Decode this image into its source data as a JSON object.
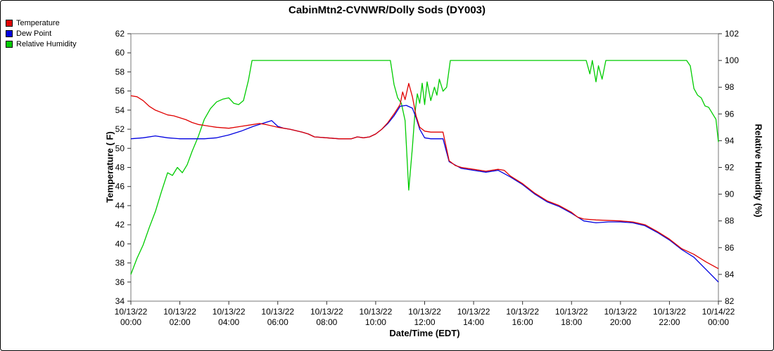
{
  "title": "CabinMtn2-CVNWR/Dolly Sods (DY003)",
  "legend": {
    "items": [
      {
        "label": "Temperature",
        "color": "#e00000"
      },
      {
        "label": "Dew Point",
        "color": "#0000e0"
      },
      {
        "label": "Relative Humidity",
        "color": "#00cc00"
      }
    ]
  },
  "chart_data": {
    "type": "line",
    "title": "CabinMtn2-CVNWR/Dolly Sods (DY003)",
    "xlabel": "Date/Time (EDT)",
    "ylabel_left": "Temperature ( F)",
    "ylabel_right": "Relative Humidity (%)",
    "x_unit": "hours since 10/13/22 00:00",
    "xlim": [
      0,
      24
    ],
    "ylim_left": [
      34,
      62
    ],
    "ylim_right": [
      82,
      102
    ],
    "yticks_left": [
      34,
      36,
      38,
      40,
      42,
      44,
      46,
      48,
      50,
      52,
      54,
      56,
      58,
      60,
      62
    ],
    "yticks_right": [
      82,
      84,
      86,
      88,
      90,
      92,
      94,
      96,
      98,
      100,
      102
    ],
    "xticks": [
      {
        "pos": 0,
        "date": "10/13/22",
        "time": "00:00"
      },
      {
        "pos": 2,
        "date": "10/13/22",
        "time": "02:00"
      },
      {
        "pos": 4,
        "date": "10/13/22",
        "time": "04:00"
      },
      {
        "pos": 6,
        "date": "10/13/22",
        "time": "06:00"
      },
      {
        "pos": 8,
        "date": "10/13/22",
        "time": "08:00"
      },
      {
        "pos": 10,
        "date": "10/13/22",
        "time": "10:00"
      },
      {
        "pos": 12,
        "date": "10/13/22",
        "time": "12:00"
      },
      {
        "pos": 14,
        "date": "10/13/22",
        "time": "14:00"
      },
      {
        "pos": 16,
        "date": "10/13/22",
        "time": "16:00"
      },
      {
        "pos": 18,
        "date": "10/13/22",
        "time": "18:00"
      },
      {
        "pos": 20,
        "date": "10/13/22",
        "time": "20:00"
      },
      {
        "pos": 22,
        "date": "10/13/22",
        "time": "22:00"
      },
      {
        "pos": 24,
        "date": "10/14/22",
        "time": "00:00"
      }
    ],
    "grid": false,
    "legend_position": "top-left",
    "series": [
      {
        "name": "Relative Humidity",
        "axis": "right",
        "color": "#00cc00",
        "points": [
          [
            0,
            84.0
          ],
          [
            0.25,
            85.2
          ],
          [
            0.5,
            86.2
          ],
          [
            0.75,
            87.5
          ],
          [
            1.0,
            88.7
          ],
          [
            1.25,
            90.2
          ],
          [
            1.5,
            91.6
          ],
          [
            1.7,
            91.4
          ],
          [
            1.9,
            92.0
          ],
          [
            2.1,
            91.6
          ],
          [
            2.3,
            92.2
          ],
          [
            2.5,
            93.2
          ],
          [
            2.75,
            94.3
          ],
          [
            3.0,
            95.6
          ],
          [
            3.25,
            96.4
          ],
          [
            3.5,
            96.9
          ],
          [
            3.75,
            97.1
          ],
          [
            4.0,
            97.2
          ],
          [
            4.2,
            96.8
          ],
          [
            4.4,
            96.7
          ],
          [
            4.6,
            97.0
          ],
          [
            4.8,
            98.5
          ],
          [
            4.95,
            100
          ],
          [
            10.6,
            100
          ],
          [
            10.75,
            98.2
          ],
          [
            10.9,
            97.2
          ],
          [
            11.05,
            96.8
          ],
          [
            11.2,
            95.5
          ],
          [
            11.35,
            90.3
          ],
          [
            11.5,
            93.5
          ],
          [
            11.6,
            96.0
          ],
          [
            11.7,
            97.5
          ],
          [
            11.8,
            96.8
          ],
          [
            11.9,
            98.3
          ],
          [
            12.0,
            96.7
          ],
          [
            12.1,
            98.4
          ],
          [
            12.25,
            97.0
          ],
          [
            12.4,
            98.0
          ],
          [
            12.5,
            97.4
          ],
          [
            12.6,
            98.6
          ],
          [
            12.75,
            97.7
          ],
          [
            12.9,
            98.0
          ],
          [
            13.05,
            100
          ],
          [
            18.6,
            100
          ],
          [
            18.75,
            99.0
          ],
          [
            18.85,
            100
          ],
          [
            19.0,
            98.4
          ],
          [
            19.1,
            99.6
          ],
          [
            19.25,
            98.6
          ],
          [
            19.4,
            100
          ],
          [
            22.7,
            100
          ],
          [
            22.85,
            99.6
          ],
          [
            23.0,
            97.9
          ],
          [
            23.15,
            97.4
          ],
          [
            23.3,
            97.2
          ],
          [
            23.45,
            96.6
          ],
          [
            23.6,
            96.5
          ],
          [
            23.8,
            95.9
          ],
          [
            23.9,
            95.6
          ],
          [
            24.0,
            93.9
          ]
        ]
      },
      {
        "name": "Dew Point",
        "axis": "left",
        "color": "#0000e0",
        "points": [
          [
            0,
            51.0
          ],
          [
            0.5,
            51.1
          ],
          [
            1.0,
            51.3
          ],
          [
            1.5,
            51.1
          ],
          [
            2.0,
            51.0
          ],
          [
            3.0,
            51.0
          ],
          [
            3.5,
            51.1
          ],
          [
            4.0,
            51.4
          ],
          [
            4.5,
            51.8
          ],
          [
            5.0,
            52.3
          ],
          [
            5.5,
            52.7
          ],
          [
            5.75,
            52.9
          ],
          [
            6.0,
            52.3
          ],
          [
            6.25,
            52.1
          ],
          [
            6.5,
            52.0
          ],
          [
            7.0,
            51.7
          ],
          [
            7.25,
            51.5
          ],
          [
            7.5,
            51.2
          ],
          [
            8.0,
            51.1
          ],
          [
            8.5,
            51.0
          ],
          [
            9.0,
            51.0
          ],
          [
            9.25,
            51.2
          ],
          [
            9.5,
            51.1
          ],
          [
            9.75,
            51.2
          ],
          [
            10.0,
            51.5
          ],
          [
            10.25,
            52.0
          ],
          [
            10.5,
            52.6
          ],
          [
            10.75,
            53.4
          ],
          [
            11.0,
            54.4
          ],
          [
            11.25,
            54.5
          ],
          [
            11.5,
            54.2
          ],
          [
            11.65,
            53.2
          ],
          [
            11.8,
            52.0
          ],
          [
            12.0,
            51.1
          ],
          [
            12.25,
            51.0
          ],
          [
            12.75,
            51.0
          ],
          [
            13.0,
            48.6
          ],
          [
            13.5,
            47.9
          ],
          [
            14.0,
            47.7
          ],
          [
            14.5,
            47.5
          ],
          [
            15.0,
            47.7
          ],
          [
            15.5,
            47.0
          ],
          [
            16.0,
            46.2
          ],
          [
            16.5,
            45.2
          ],
          [
            17.0,
            44.4
          ],
          [
            17.5,
            43.9
          ],
          [
            18.0,
            43.2
          ],
          [
            18.5,
            42.4
          ],
          [
            19.0,
            42.2
          ],
          [
            19.5,
            42.3
          ],
          [
            20.0,
            42.3
          ],
          [
            20.5,
            42.2
          ],
          [
            21.0,
            41.9
          ],
          [
            21.5,
            41.2
          ],
          [
            22.0,
            40.4
          ],
          [
            22.5,
            39.4
          ],
          [
            23.0,
            38.6
          ],
          [
            23.5,
            37.3
          ],
          [
            24.0,
            36.0
          ]
        ]
      },
      {
        "name": "Temperature",
        "axis": "left",
        "color": "#e00000",
        "points": [
          [
            0,
            55.5
          ],
          [
            0.25,
            55.4
          ],
          [
            0.5,
            55.0
          ],
          [
            0.75,
            54.4
          ],
          [
            1.0,
            54.0
          ],
          [
            1.5,
            53.5
          ],
          [
            1.75,
            53.4
          ],
          [
            2.0,
            53.2
          ],
          [
            2.25,
            53.0
          ],
          [
            2.5,
            52.7
          ],
          [
            2.75,
            52.5
          ],
          [
            3.0,
            52.4
          ],
          [
            3.25,
            52.3
          ],
          [
            3.5,
            52.2
          ],
          [
            4.0,
            52.1
          ],
          [
            4.5,
            52.3
          ],
          [
            5.0,
            52.5
          ],
          [
            5.25,
            52.6
          ],
          [
            5.5,
            52.5
          ],
          [
            6.0,
            52.2
          ],
          [
            6.5,
            52.0
          ],
          [
            7.0,
            51.7
          ],
          [
            7.25,
            51.5
          ],
          [
            7.5,
            51.2
          ],
          [
            8.0,
            51.1
          ],
          [
            8.5,
            51.0
          ],
          [
            9.0,
            51.0
          ],
          [
            9.25,
            51.2
          ],
          [
            9.5,
            51.1
          ],
          [
            9.75,
            51.2
          ],
          [
            10.0,
            51.5
          ],
          [
            10.25,
            52.0
          ],
          [
            10.5,
            52.7
          ],
          [
            10.75,
            53.6
          ],
          [
            11.0,
            54.6
          ],
          [
            11.1,
            55.9
          ],
          [
            11.2,
            55.1
          ],
          [
            11.35,
            56.8
          ],
          [
            11.5,
            55.4
          ],
          [
            11.65,
            53.4
          ],
          [
            11.8,
            52.2
          ],
          [
            12.0,
            51.8
          ],
          [
            12.25,
            51.7
          ],
          [
            12.75,
            51.7
          ],
          [
            13.0,
            48.7
          ],
          [
            13.25,
            48.2
          ],
          [
            13.5,
            48.0
          ],
          [
            14.0,
            47.8
          ],
          [
            14.5,
            47.6
          ],
          [
            15.0,
            47.8
          ],
          [
            15.25,
            47.7
          ],
          [
            15.5,
            47.1
          ],
          [
            16.0,
            46.3
          ],
          [
            16.5,
            45.3
          ],
          [
            17.0,
            44.5
          ],
          [
            17.5,
            44.0
          ],
          [
            18.0,
            43.3
          ],
          [
            18.25,
            42.8
          ],
          [
            18.5,
            42.6
          ],
          [
            19.0,
            42.5
          ],
          [
            20.0,
            42.4
          ],
          [
            20.5,
            42.3
          ],
          [
            21.0,
            42.0
          ],
          [
            21.5,
            41.3
          ],
          [
            22.0,
            40.5
          ],
          [
            22.5,
            39.5
          ],
          [
            23.0,
            38.9
          ],
          [
            23.5,
            38.1
          ],
          [
            24.0,
            37.4
          ]
        ]
      }
    ]
  }
}
